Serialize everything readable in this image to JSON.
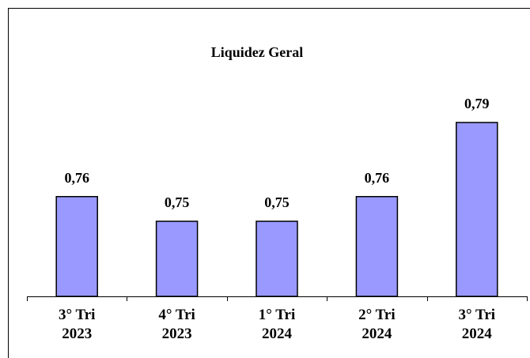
{
  "chart_data": {
    "type": "bar",
    "title": "Liquidez  Geral",
    "categories": [
      "3° Tri 2023",
      "4° Tri 2023",
      "1° Tri 2024",
      "2° Tri 2024",
      "3° Tri 2024"
    ],
    "values": [
      0.76,
      0.75,
      0.75,
      0.76,
      0.79
    ],
    "value_labels": [
      "0,76",
      "0,75",
      "0,75",
      "0,76",
      "0,79"
    ],
    "color": "#9999ff"
  }
}
